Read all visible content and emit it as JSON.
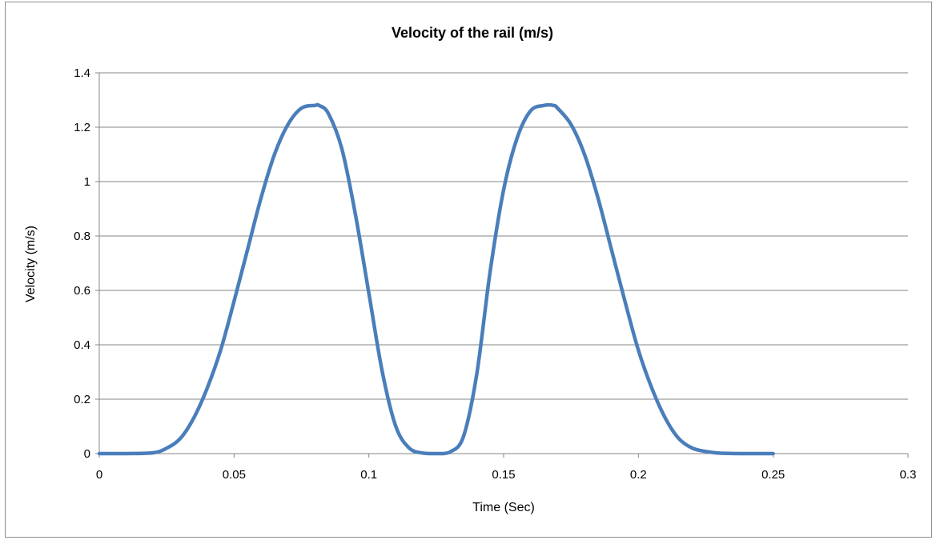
{
  "chart_data": {
    "type": "line",
    "title": "Velocity of the rail (m/s)",
    "xlabel": "Time (Sec)",
    "ylabel": "Velocity (m/s)",
    "xlim": [
      0,
      0.3
    ],
    "ylim": [
      0,
      1.4
    ],
    "x_ticks": [
      "0",
      "0.05",
      "0.1",
      "0.15",
      "0.2",
      "0.25",
      "0.3"
    ],
    "y_ticks": [
      "0",
      "0.2",
      "0.4",
      "0.6",
      "0.8",
      "1",
      "1.2",
      "1.4"
    ],
    "grid": "horizontal",
    "legend": "none",
    "series": [
      {
        "color": "#4a7ebb",
        "x": [
          0,
          0.01,
          0.02,
          0.025,
          0.03,
          0.035,
          0.04,
          0.045,
          0.05,
          0.055,
          0.06,
          0.065,
          0.07,
          0.075,
          0.08,
          0.0815,
          0.085,
          0.09,
          0.095,
          0.1,
          0.105,
          0.11,
          0.115,
          0.12,
          0.1235,
          0.1275,
          0.13,
          0.135,
          0.14,
          0.145,
          0.15,
          0.155,
          0.16,
          0.165,
          0.1685,
          0.17,
          0.175,
          0.18,
          0.185,
          0.19,
          0.195,
          0.2,
          0.205,
          0.21,
          0.215,
          0.22,
          0.225,
          0.23,
          0.24,
          0.25
        ],
        "y": [
          0,
          0,
          0.003,
          0.02,
          0.055,
          0.13,
          0.24,
          0.38,
          0.56,
          0.75,
          0.94,
          1.1,
          1.21,
          1.27,
          1.28,
          1.28,
          1.25,
          1.12,
          0.88,
          0.59,
          0.3,
          0.1,
          0.02,
          0.002,
          0,
          0,
          0.005,
          0.06,
          0.29,
          0.67,
          0.97,
          1.16,
          1.26,
          1.28,
          1.28,
          1.27,
          1.21,
          1.1,
          0.94,
          0.75,
          0.56,
          0.38,
          0.24,
          0.13,
          0.055,
          0.02,
          0.008,
          0.002,
          0,
          0
        ]
      }
    ]
  }
}
